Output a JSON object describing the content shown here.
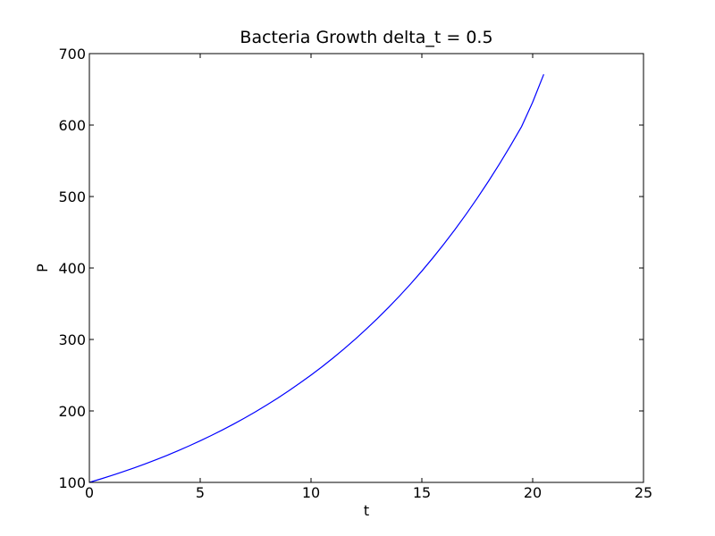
{
  "chart_data": {
    "type": "line",
    "title": "Bacteria Growth delta_t = 0.5",
    "xlabel": "t",
    "ylabel": "P",
    "xlim": [
      0,
      25
    ],
    "ylim": [
      100,
      700
    ],
    "xticks": [
      0,
      5,
      10,
      15,
      20,
      25
    ],
    "yticks": [
      100,
      200,
      300,
      400,
      500,
      600,
      700
    ],
    "xtick_labels": [
      "0",
      "5",
      "10",
      "15",
      "20",
      "25"
    ],
    "ytick_labels": [
      "100",
      "200",
      "300",
      "400",
      "500",
      "600",
      "700"
    ],
    "grid": false,
    "series": [
      {
        "color": "#0000ff",
        "x": [
          0,
          0.5,
          1,
          1.5,
          2,
          2.5,
          3,
          3.5,
          4,
          4.5,
          5,
          5.5,
          6,
          6.5,
          7,
          7.5,
          8,
          8.5,
          9,
          9.5,
          10,
          10.5,
          11,
          11.5,
          12,
          12.5,
          13,
          13.5,
          14,
          14.5,
          15,
          15.5,
          16,
          16.5,
          17,
          17.5,
          18,
          18.5,
          19,
          19.5,
          20,
          20.5
        ],
        "y": [
          100,
          104.7,
          109.6,
          114.7,
          120.1,
          125.7,
          131.6,
          137.8,
          144.3,
          151.1,
          158.2,
          165.6,
          173.4,
          181.5,
          190.0,
          198.9,
          208.3,
          218.0,
          228.3,
          239.0,
          250.2,
          261.9,
          274.2,
          287.1,
          300.6,
          314.7,
          329.4,
          344.9,
          361.1,
          378.0,
          395.7,
          414.3,
          433.7,
          454.1,
          475.4,
          497.7,
          521.1,
          545.5,
          571.1,
          597.9,
          632.0,
          671.0
        ]
      }
    ]
  }
}
